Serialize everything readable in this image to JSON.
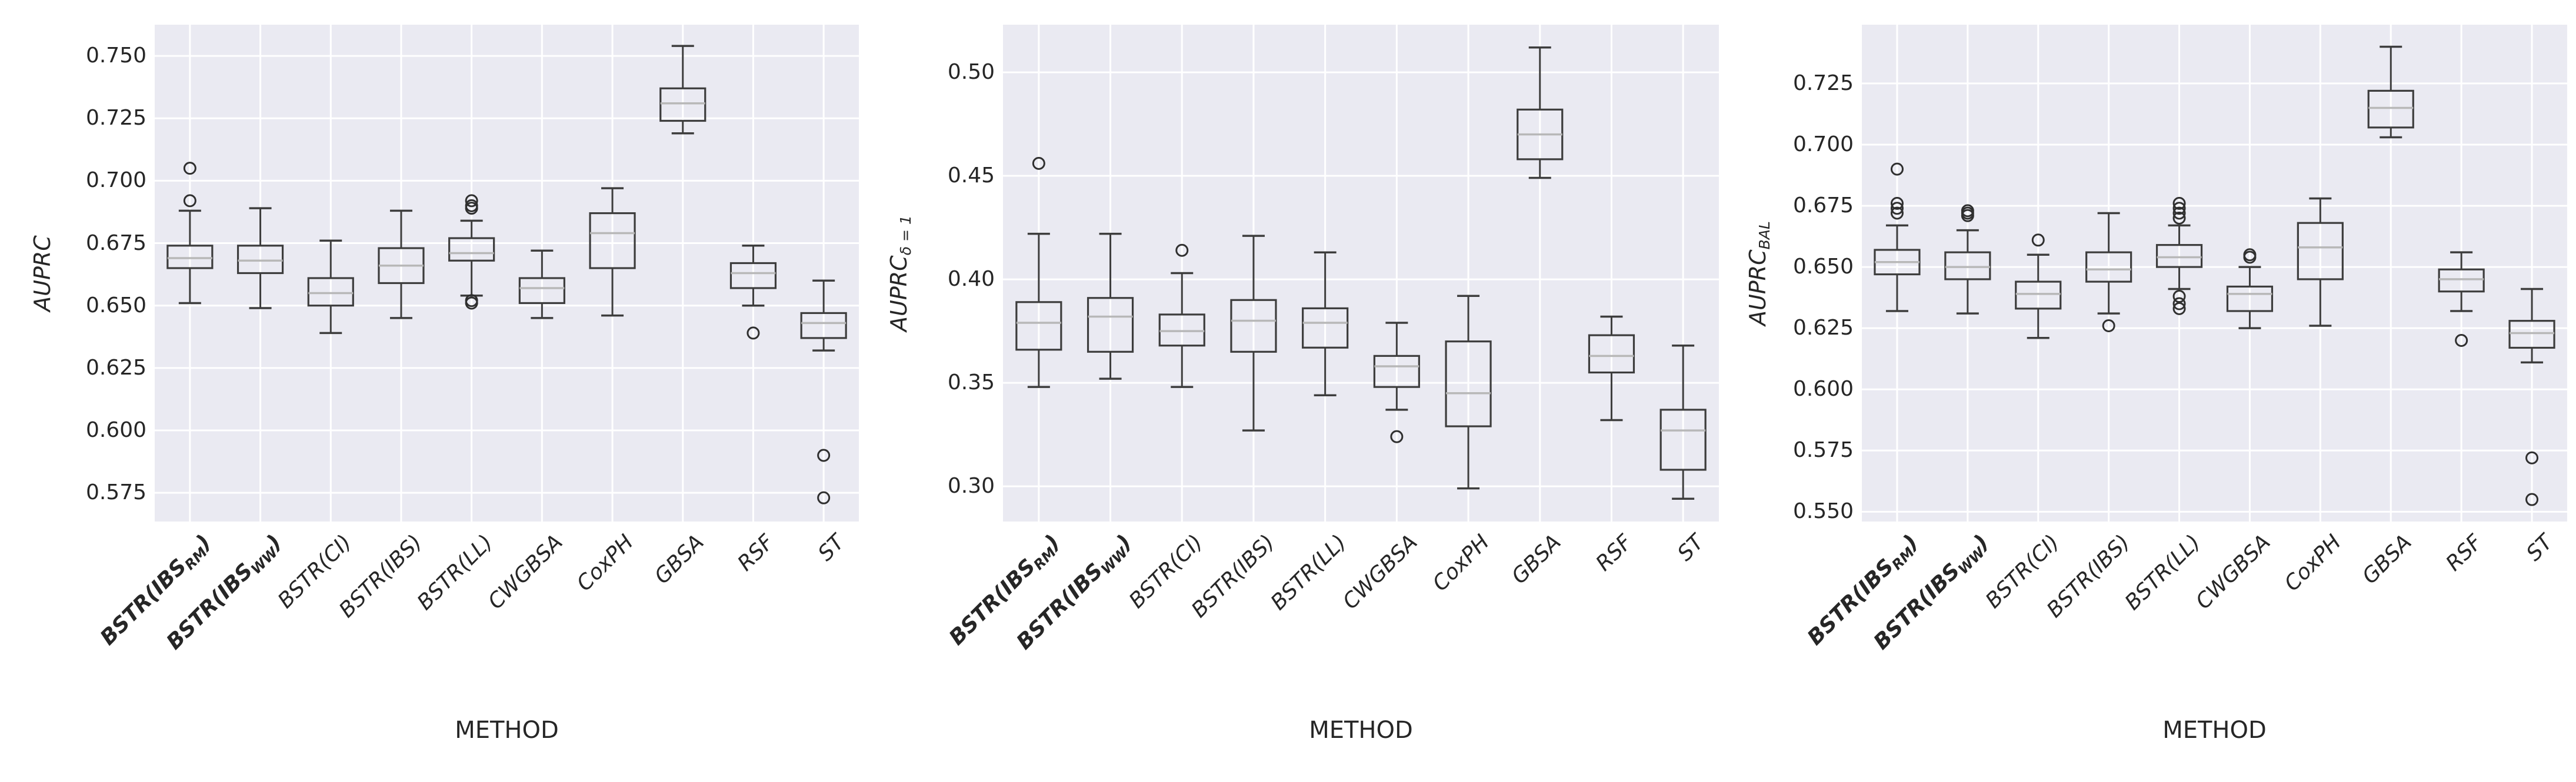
{
  "figure": {
    "background": "#ffffff",
    "axes_background": "#eaeaf2",
    "grid_color": "#ffffff",
    "box_edge_color": "#3d3d3d",
    "median_color": "#b8b8b8",
    "outlier_edge_color": "#2f2f2f",
    "text_color": "#262626"
  },
  "method_labels": [
    {
      "pre": "BSTR(IBS",
      "sub": "RM",
      "post": ")",
      "bold": true
    },
    {
      "pre": "BSTR(IBS",
      "sub": "WW",
      "post": ")",
      "bold": true
    },
    {
      "pre": "BSTR(CI)",
      "sub": "",
      "post": "",
      "bold": false
    },
    {
      "pre": "BSTR(IBS)",
      "sub": "",
      "post": "",
      "bold": false
    },
    {
      "pre": "BSTR(LL)",
      "sub": "",
      "post": "",
      "bold": false
    },
    {
      "pre": "CWGBSA",
      "sub": "",
      "post": "",
      "bold": false
    },
    {
      "pre": "CoxPH",
      "sub": "",
      "post": "",
      "bold": false
    },
    {
      "pre": "GBSA",
      "sub": "",
      "post": "",
      "bold": false
    },
    {
      "pre": "RSF",
      "sub": "",
      "post": "",
      "bold": false
    },
    {
      "pre": "ST",
      "sub": "",
      "post": "",
      "bold": false
    }
  ],
  "chart_data": [
    {
      "type": "box",
      "title": "",
      "ylabel": "AUPRC",
      "ylabel_sub": "",
      "xlabel": "METHOD",
      "legend": "none",
      "grid": true,
      "categories": [
        "BSTR(IBS_RM)",
        "BSTR(IBS_WW)",
        "BSTR(CI)",
        "BSTR(IBS)",
        "BSTR(LL)",
        "CWGBSA",
        "CoxPH",
        "GBSA",
        "RSF",
        "ST"
      ],
      "ylim": [
        0.5635,
        0.7625
      ],
      "yticks": [
        0.575,
        0.6,
        0.625,
        0.65,
        0.675,
        0.7,
        0.725,
        0.75
      ],
      "ytick_labels": [
        "0.575",
        "0.600",
        "0.625",
        "0.650",
        "0.675",
        "0.700",
        "0.725",
        "0.750"
      ],
      "boxes": [
        {
          "whislo": 0.651,
          "q1": 0.665,
          "med": 0.669,
          "q3": 0.674,
          "whishi": 0.688,
          "outliers": [
            0.692,
            0.705
          ]
        },
        {
          "whislo": 0.649,
          "q1": 0.663,
          "med": 0.668,
          "q3": 0.674,
          "whishi": 0.689,
          "outliers": []
        },
        {
          "whislo": 0.639,
          "q1": 0.65,
          "med": 0.655,
          "q3": 0.661,
          "whishi": 0.676,
          "outliers": []
        },
        {
          "whislo": 0.645,
          "q1": 0.659,
          "med": 0.666,
          "q3": 0.673,
          "whishi": 0.688,
          "outliers": []
        },
        {
          "whislo": 0.654,
          "q1": 0.668,
          "med": 0.671,
          "q3": 0.677,
          "whishi": 0.684,
          "outliers": [
            0.689,
            0.69,
            0.692,
            0.652,
            0.651
          ]
        },
        {
          "whislo": 0.645,
          "q1": 0.651,
          "med": 0.657,
          "q3": 0.661,
          "whishi": 0.672,
          "outliers": []
        },
        {
          "whislo": 0.646,
          "q1": 0.665,
          "med": 0.679,
          "q3": 0.687,
          "whishi": 0.697,
          "outliers": []
        },
        {
          "whislo": 0.719,
          "q1": 0.724,
          "med": 0.731,
          "q3": 0.737,
          "whishi": 0.754,
          "outliers": []
        },
        {
          "whislo": 0.65,
          "q1": 0.657,
          "med": 0.663,
          "q3": 0.667,
          "whishi": 0.674,
          "outliers": [
            0.639
          ]
        },
        {
          "whislo": 0.632,
          "q1": 0.637,
          "med": 0.643,
          "q3": 0.647,
          "whishi": 0.66,
          "outliers": [
            0.59,
            0.573
          ]
        }
      ]
    },
    {
      "type": "box",
      "title": "",
      "ylabel": "AUPRC",
      "ylabel_sub": "δ = 1",
      "xlabel": "METHOD",
      "legend": "none",
      "grid": true,
      "categories": [
        "BSTR(IBS_RM)",
        "BSTR(IBS_WW)",
        "BSTR(CI)",
        "BSTR(IBS)",
        "BSTR(LL)",
        "CWGBSA",
        "CoxPH",
        "GBSA",
        "RSF",
        "ST"
      ],
      "ylim": [
        0.283,
        0.523
      ],
      "yticks": [
        0.3,
        0.35,
        0.4,
        0.45,
        0.5
      ],
      "ytick_labels": [
        "0.30",
        "0.35",
        "0.40",
        "0.45",
        "0.50"
      ],
      "boxes": [
        {
          "whislo": 0.348,
          "q1": 0.366,
          "med": 0.379,
          "q3": 0.389,
          "whishi": 0.422,
          "outliers": [
            0.456
          ]
        },
        {
          "whislo": 0.352,
          "q1": 0.365,
          "med": 0.382,
          "q3": 0.391,
          "whishi": 0.422,
          "outliers": []
        },
        {
          "whislo": 0.348,
          "q1": 0.368,
          "med": 0.375,
          "q3": 0.383,
          "whishi": 0.403,
          "outliers": [
            0.414
          ]
        },
        {
          "whislo": 0.327,
          "q1": 0.365,
          "med": 0.38,
          "q3": 0.39,
          "whishi": 0.421,
          "outliers": []
        },
        {
          "whislo": 0.344,
          "q1": 0.367,
          "med": 0.379,
          "q3": 0.386,
          "whishi": 0.413,
          "outliers": []
        },
        {
          "whislo": 0.337,
          "q1": 0.348,
          "med": 0.358,
          "q3": 0.363,
          "whishi": 0.379,
          "outliers": [
            0.324
          ]
        },
        {
          "whislo": 0.299,
          "q1": 0.329,
          "med": 0.345,
          "q3": 0.37,
          "whishi": 0.392,
          "outliers": []
        },
        {
          "whislo": 0.449,
          "q1": 0.458,
          "med": 0.47,
          "q3": 0.482,
          "whishi": 0.512,
          "outliers": []
        },
        {
          "whislo": 0.332,
          "q1": 0.355,
          "med": 0.363,
          "q3": 0.373,
          "whishi": 0.382,
          "outliers": []
        },
        {
          "whislo": 0.294,
          "q1": 0.308,
          "med": 0.327,
          "q3": 0.337,
          "whishi": 0.368,
          "outliers": []
        }
      ]
    },
    {
      "type": "box",
      "title": "",
      "ylabel": "AUPRC",
      "ylabel_sub": "BAL",
      "xlabel": "METHOD",
      "legend": "none",
      "grid": true,
      "categories": [
        "BSTR(IBS_RM)",
        "BSTR(IBS_WW)",
        "BSTR(CI)",
        "BSTR(IBS)",
        "BSTR(LL)",
        "CWGBSA",
        "CoxPH",
        "GBSA",
        "RSF",
        "ST"
      ],
      "ylim": [
        0.546,
        0.749
      ],
      "yticks": [
        0.55,
        0.575,
        0.6,
        0.625,
        0.65,
        0.675,
        0.7,
        0.725
      ],
      "ytick_labels": [
        "0.550",
        "0.575",
        "0.600",
        "0.625",
        "0.650",
        "0.675",
        "0.700",
        "0.725"
      ],
      "boxes": [
        {
          "whislo": 0.632,
          "q1": 0.647,
          "med": 0.652,
          "q3": 0.657,
          "whishi": 0.667,
          "outliers": [
            0.672,
            0.674,
            0.676,
            0.69
          ]
        },
        {
          "whislo": 0.631,
          "q1": 0.645,
          "med": 0.65,
          "q3": 0.656,
          "whishi": 0.665,
          "outliers": [
            0.671,
            0.672,
            0.673
          ]
        },
        {
          "whislo": 0.621,
          "q1": 0.633,
          "med": 0.639,
          "q3": 0.644,
          "whishi": 0.655,
          "outliers": [
            0.661
          ]
        },
        {
          "whislo": 0.631,
          "q1": 0.644,
          "med": 0.649,
          "q3": 0.656,
          "whishi": 0.672,
          "outliers": [
            0.626
          ]
        },
        {
          "whislo": 0.641,
          "q1": 0.65,
          "med": 0.654,
          "q3": 0.659,
          "whishi": 0.667,
          "outliers": [
            0.67,
            0.672,
            0.674,
            0.676,
            0.638,
            0.635,
            0.633
          ]
        },
        {
          "whislo": 0.625,
          "q1": 0.632,
          "med": 0.639,
          "q3": 0.642,
          "whishi": 0.65,
          "outliers": [
            0.654,
            0.655
          ]
        },
        {
          "whislo": 0.626,
          "q1": 0.645,
          "med": 0.658,
          "q3": 0.668,
          "whishi": 0.678,
          "outliers": []
        },
        {
          "whislo": 0.703,
          "q1": 0.707,
          "med": 0.715,
          "q3": 0.722,
          "whishi": 0.74,
          "outliers": []
        },
        {
          "whislo": 0.632,
          "q1": 0.64,
          "med": 0.645,
          "q3": 0.649,
          "whishi": 0.656,
          "outliers": [
            0.62
          ]
        },
        {
          "whislo": 0.611,
          "q1": 0.617,
          "med": 0.623,
          "q3": 0.628,
          "whishi": 0.641,
          "outliers": [
            0.572,
            0.555
          ]
        }
      ]
    }
  ]
}
